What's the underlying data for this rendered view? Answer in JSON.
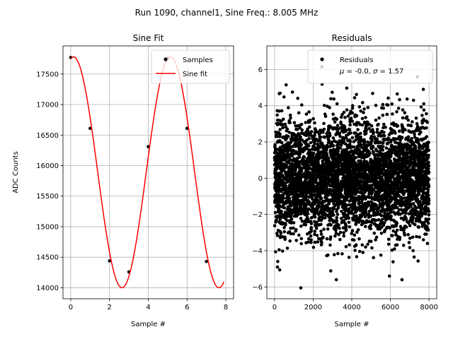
{
  "figure": {
    "suptitle": "Run 1090, channel1, Sine Freq.: 8.005 MHz"
  },
  "chart_data": [
    {
      "type": "scatter",
      "title": "Sine Fit",
      "xlabel": "Sample #",
      "ylabel": "ADC Counts",
      "xlim": [
        -0.4,
        8.4
      ],
      "ylim": [
        13820,
        17960
      ],
      "xticks": [
        0,
        2,
        4,
        6,
        8
      ],
      "yticks": [
        14000,
        14500,
        15000,
        15500,
        16000,
        16500,
        17000,
        17500
      ],
      "grid": true,
      "legend_position": "top-right",
      "series": [
        {
          "name": "Samples",
          "type": "scatter",
          "color": "#000000",
          "x": [
            0,
            1,
            2,
            3,
            4,
            5,
            6,
            7
          ],
          "y": [
            17770,
            16610,
            14440,
            14260,
            16310,
            17760,
            16610,
            14430
          ]
        },
        {
          "name": "Sine fit",
          "type": "line",
          "color": "#ff0000",
          "model": {
            "offset": 15890,
            "amplitude": 1890,
            "period": 5.0,
            "phase_rad": 0.18,
            "x_range": [
              0,
              7.9
            ]
          }
        }
      ]
    },
    {
      "type": "scatter",
      "title": "Residuals",
      "xlabel": "Sample #",
      "ylabel": "",
      "xlim": [
        -400,
        8400
      ],
      "ylim": [
        -6.65,
        7.3
      ],
      "xticks": [
        0,
        2000,
        4000,
        6000,
        8000
      ],
      "yticks": [
        -6,
        -4,
        -2,
        0,
        2,
        4,
        6
      ],
      "grid": true,
      "legend_position": "top-right",
      "series": [
        {
          "name": "Residuals",
          "legend_stats": "μ = -0.0, σ = 1.57",
          "color": "#000000",
          "point_count": 8000,
          "mean": 0.0,
          "std": 1.57,
          "notable_points": [
            {
              "x": 2450,
              "y": 6.15
            },
            {
              "x": 1360,
              "y": -6.05
            },
            {
              "x": 5950,
              "y": -5.4
            },
            {
              "x": 6600,
              "y": -5.6
            },
            {
              "x": 3200,
              "y": -5.6
            },
            {
              "x": 600,
              "y": 5.15
            },
            {
              "x": 7400,
              "y": 5.6
            },
            {
              "x": 150,
              "y": -4.9
            }
          ]
        }
      ]
    }
  ]
}
